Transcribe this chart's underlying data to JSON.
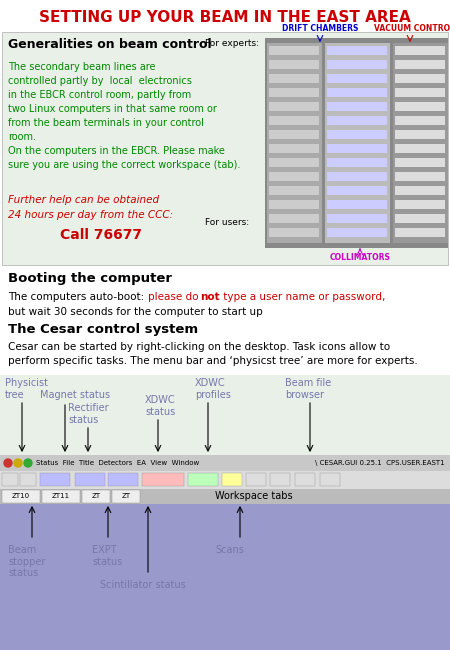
{
  "title": "SETTING UP YOUR BEAM IN THE EAST AREA",
  "title_color": "#CC0000",
  "bg_color": "#FFFFFF",
  "section1_bg": "#E8F0E8",
  "section1_header": "Generalities on beam control",
  "for_experts_label": "For experts:",
  "for_users_label": "For users:",
  "drift_chambers_label": "DRIFT CHAMBERS",
  "vacuum_control_label": "VACUUM CONTROL",
  "collimators_label": "COLLIMATORS",
  "section1_text": "The secondary beam lines are\ncontrolled partly by  local  electronics\nin the EBCR control room, partly from\ntwo Linux computers in that same room or\nfrom the beam terminals in your control\nroom.\nOn the computers in the EBCR. Please make\nsure you are using the correct workspace (tab).",
  "section1_help_text1": "Further help can be obtained",
  "section1_help_text2": "24 hours per day from the CCC:",
  "section1_help_call": "Call 76677",
  "section1_help_color": "#CC0000",
  "section2_header": "Booting the computer",
  "section3_header": "The Cesar control system",
  "section3_text": "Cesar can be started by right-clicking on the desktop. Task icons allow to\nperform specific tasks. The menu bar and ‘physicst tree’ are more for experts.",
  "gui_bar_color": "#C8C8C8",
  "workspace_color": "#9999CC",
  "annotation_color": "#7777AA",
  "ann_fontsize": 7.0,
  "red_color": "#CC0000",
  "blue_color": "#0000CC",
  "magenta_color": "#CC00CC",
  "green_text_color": "#008800"
}
